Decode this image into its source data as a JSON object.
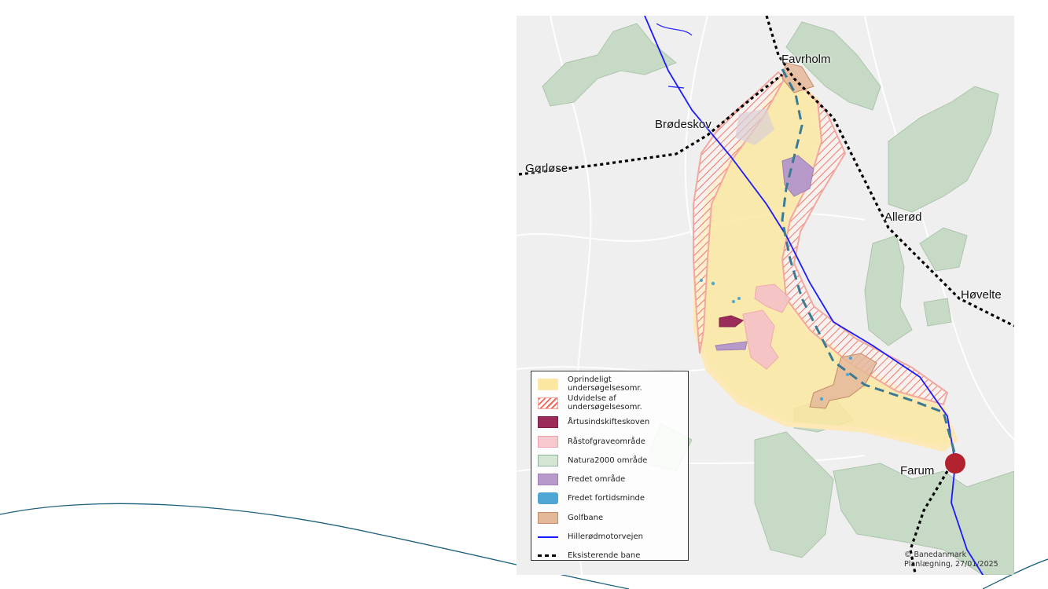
{
  "map": {
    "towns": [
      "Favrholm",
      "Brødeskov",
      "Gørløse",
      "Allerød",
      "Høvelte",
      "Farum"
    ],
    "legend": [
      {
        "label": "Oprindeligt undersøgelsesomr.",
        "color": "#fbe9a0",
        "style": "fill"
      },
      {
        "label": "Udvidelse af undersøgelsesomr.",
        "color": "#f2675a",
        "style": "hatch"
      },
      {
        "label": "Årtusindskifteskoven",
        "color": "#9b2c5a",
        "style": "fill"
      },
      {
        "label": "Råstofgraveområde",
        "color": "#f6c9cf",
        "style": "fill"
      },
      {
        "label": "Natura2000 område",
        "color": "#d5e6d5",
        "style": "fill"
      },
      {
        "label": "Fredet område",
        "color": "#b79ac9",
        "style": "fill"
      },
      {
        "label": "Fredet fortidsminde",
        "color": "#4ea6d4",
        "style": "fill"
      },
      {
        "label": "Golfbane",
        "color": "#e4b99a",
        "style": "fill"
      },
      {
        "label": "Hillerødmotorvejen",
        "color": "#1a1aff",
        "style": "line"
      },
      {
        "label": "Eksisterende bane",
        "color": "#000000",
        "style": "dashed"
      }
    ],
    "credit_line1": "© Banedanmark",
    "credit_line2": "Planlægning, 27/01/2025",
    "station_color": "#b3232f",
    "proposed_line_color": "#3b7a94"
  }
}
